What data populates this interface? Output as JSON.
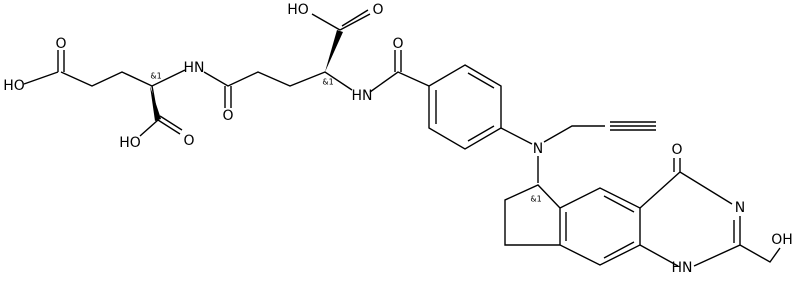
{
  "atoms": [
    "HO",
    "O",
    "O",
    "O",
    "HO",
    "HN",
    "&1",
    "&1",
    "HN",
    "O",
    "HO",
    "O",
    "N",
    "O",
    "&1",
    "N",
    "OH",
    "HN"
  ]
}
